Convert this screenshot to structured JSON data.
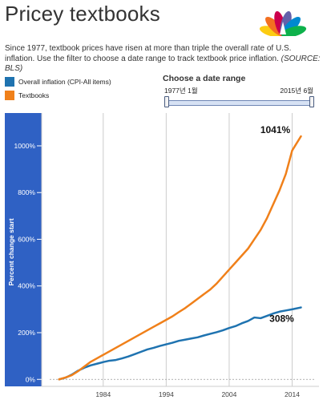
{
  "header": {
    "title": "Pricey textbooks",
    "subtitle": "Since 1977, textbook prices have risen at more than triple the overall rate of U.S. inflation. Use the filter to choose a date range to track textbook price inflation.",
    "source": "(SOURCE: BLS)"
  },
  "logo": {
    "icon": "peacock-logo-icon",
    "colors": [
      "#fccc12",
      "#f37021",
      "#cc004c",
      "#6460aa",
      "#0089d0",
      "#0db14b"
    ]
  },
  "filter": {
    "title": "Choose a date range",
    "start_label": "1977년 1월",
    "end_label": "2015년 6월",
    "range": [
      "1977-01",
      "2015-06"
    ]
  },
  "chart_data": {
    "type": "line",
    "title": "",
    "xlabel": "",
    "ylabel": "Percent change start",
    "x_ticks": [
      "1984",
      "1994",
      "2004",
      "2014"
    ],
    "y_ticks": [
      "0%",
      "200%",
      "400%",
      "600%",
      "800%",
      "1000%"
    ],
    "xlim": [
      1975.5,
      2017.5
    ],
    "ylim": [
      -30,
      1120
    ],
    "grid": "vertical",
    "legend_position": "top-left",
    "colors": {
      "axis_band": "#2f61c4",
      "grid": "#cccccc",
      "zero_line": "#999999"
    },
    "series": [
      {
        "name": "Overall inflation (CPI-All items)",
        "color": "#1f73b0",
        "end_label": "308%",
        "x": [
          1977,
          1978,
          1979,
          1980,
          1981,
          1982,
          1983,
          1984,
          1985,
          1986,
          1987,
          1988,
          1989,
          1990,
          1991,
          1992,
          1993,
          1994,
          1995,
          1996,
          1997,
          1998,
          1999,
          2000,
          2001,
          2002,
          2003,
          2004,
          2005,
          2006,
          2007,
          2008,
          2009,
          2010,
          2011,
          2012,
          2013,
          2014,
          2015.4
        ],
        "values": [
          0,
          7,
          20,
          37,
          50,
          60,
          67,
          74,
          80,
          83,
          90,
          98,
          108,
          118,
          128,
          135,
          143,
          150,
          157,
          165,
          170,
          175,
          180,
          188,
          195,
          202,
          210,
          220,
          228,
          240,
          250,
          265,
          262,
          272,
          282,
          290,
          295,
          300,
          308
        ]
      },
      {
        "name": "Textbooks",
        "color": "#f0801a",
        "end_label": "1041%",
        "x": [
          1977,
          1978,
          1979,
          1980,
          1981,
          1982,
          1983,
          1984,
          1985,
          1986,
          1987,
          1988,
          1989,
          1990,
          1991,
          1992,
          1993,
          1994,
          1995,
          1996,
          1997,
          1998,
          1999,
          2000,
          2001,
          2002,
          2003,
          2004,
          2005,
          2006,
          2007,
          2008,
          2009,
          2010,
          2011,
          2012,
          2013,
          2014,
          2015.4
        ],
        "values": [
          0,
          8,
          18,
          35,
          55,
          75,
          90,
          105,
          120,
          135,
          150,
          165,
          180,
          195,
          210,
          225,
          240,
          255,
          270,
          288,
          305,
          325,
          345,
          365,
          385,
          410,
          440,
          470,
          500,
          530,
          560,
          600,
          640,
          690,
          750,
          810,
          880,
          980,
          1041
        ]
      }
    ]
  }
}
